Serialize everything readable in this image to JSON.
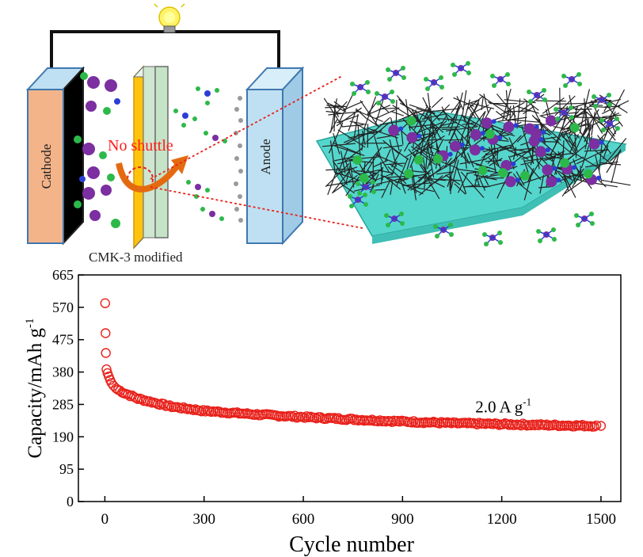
{
  "schematic": {
    "cathode_label": "Cathode",
    "anode_label": "Anode",
    "shuttle_label": "No shuttle",
    "separator_label": "CMK-3 modified"
  },
  "colors": {
    "marker": "#e8201a",
    "cathode_face": "#f4b48a",
    "anode_face": "#bfe0f2",
    "separator_yellow": "#ffc20e",
    "separator_green": "#cfe6d0",
    "substrate": "#55d6cc",
    "purple_atom": "#7b2fa0",
    "green_atom": "#2db94a",
    "blue_atom": "#2b3fd6"
  },
  "chart_data": {
    "type": "scatter",
    "xlabel": "Cycle number",
    "ylabel_main": "Capacity/mAh g",
    "ylabel_sup": "-1",
    "xlim": [
      -80,
      1560
    ],
    "ylim": [
      0,
      665
    ],
    "xticks": [
      "0",
      "300",
      "600",
      "900",
      "1200",
      "1500"
    ],
    "yticks": [
      "0",
      "95",
      "190",
      "285",
      "380",
      "475",
      "570",
      "665"
    ],
    "annotation_main": "2.0 A g",
    "annotation_sup": "-1",
    "annotation_at": [
      1120,
      262
    ],
    "initial_points": [
      {
        "x": 1,
        "y": 582
      },
      {
        "x": 2,
        "y": 494
      },
      {
        "x": 3,
        "y": 436
      },
      {
        "x": 5,
        "y": 388
      },
      {
        "x": 8,
        "y": 377
      },
      {
        "x": 12,
        "y": 367
      },
      {
        "x": 16,
        "y": 357
      },
      {
        "x": 20,
        "y": 348
      },
      {
        "x": 26,
        "y": 340
      },
      {
        "x": 34,
        "y": 332
      }
    ],
    "trend": [
      {
        "x": 40,
        "y": 328
      },
      {
        "x": 60,
        "y": 318
      },
      {
        "x": 100,
        "y": 302
      },
      {
        "x": 150,
        "y": 290
      },
      {
        "x": 200,
        "y": 279
      },
      {
        "x": 300,
        "y": 266
      },
      {
        "x": 450,
        "y": 256
      },
      {
        "x": 600,
        "y": 248
      },
      {
        "x": 750,
        "y": 241
      },
      {
        "x": 900,
        "y": 235
      },
      {
        "x": 1050,
        "y": 230
      },
      {
        "x": 1200,
        "y": 227
      },
      {
        "x": 1350,
        "y": 224
      },
      {
        "x": 1490,
        "y": 222
      }
    ],
    "sampling_step": 6,
    "final_point": {
      "x": 1500,
      "y": 222
    }
  }
}
